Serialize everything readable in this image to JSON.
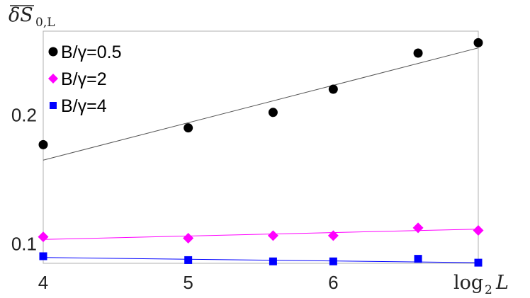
{
  "chart_data": {
    "type": "scatter",
    "ylabel": "δS̄0,L",
    "ylabel_main": "δS",
    "ylabel_sub": "0,L",
    "xlabel": "log2 L",
    "xlabel_main": "log",
    "xlabel_sub": "2",
    "xlabel_var": "L",
    "xlim": [
      4,
      7
    ],
    "ylim": [
      0.085,
      0.265
    ],
    "xticks": [
      4,
      5,
      6
    ],
    "xtick_labels": [
      "4",
      "5",
      "6"
    ],
    "yticks": [
      0.1,
      0.2
    ],
    "ytick_labels": [
      "0.1",
      "0.2"
    ],
    "grid": false,
    "legend_position": "top-left",
    "series": [
      {
        "name": "B/γ=0.5",
        "color": "#000000",
        "marker": "circle",
        "x": [
          4,
          5,
          5.585,
          6,
          6.585,
          7
        ],
        "y": [
          0.177,
          0.19,
          0.202,
          0.22,
          0.248,
          0.256
        ],
        "fit": {
          "x": [
            4,
            7
          ],
          "y": [
            0.165,
            0.252
          ]
        }
      },
      {
        "name": "B/γ=2",
        "color": "#ff00ff",
        "marker": "diamond",
        "x": [
          4,
          5,
          5.585,
          6,
          6.585,
          7
        ],
        "y": [
          0.1055,
          0.1045,
          0.1065,
          0.1065,
          0.1125,
          0.1105
        ],
        "fit": {
          "x": [
            4,
            7
          ],
          "y": [
            0.1035,
            0.1115
          ]
        }
      },
      {
        "name": "B/γ=4",
        "color": "#0000ff",
        "marker": "square",
        "x": [
          4,
          5,
          5.585,
          6,
          6.585,
          7
        ],
        "y": [
          0.0905,
          0.0875,
          0.0865,
          0.0865,
          0.0885,
          0.0855
        ],
        "fit": {
          "x": [
            4,
            7
          ],
          "y": [
            0.0895,
            0.0855
          ]
        }
      }
    ]
  }
}
